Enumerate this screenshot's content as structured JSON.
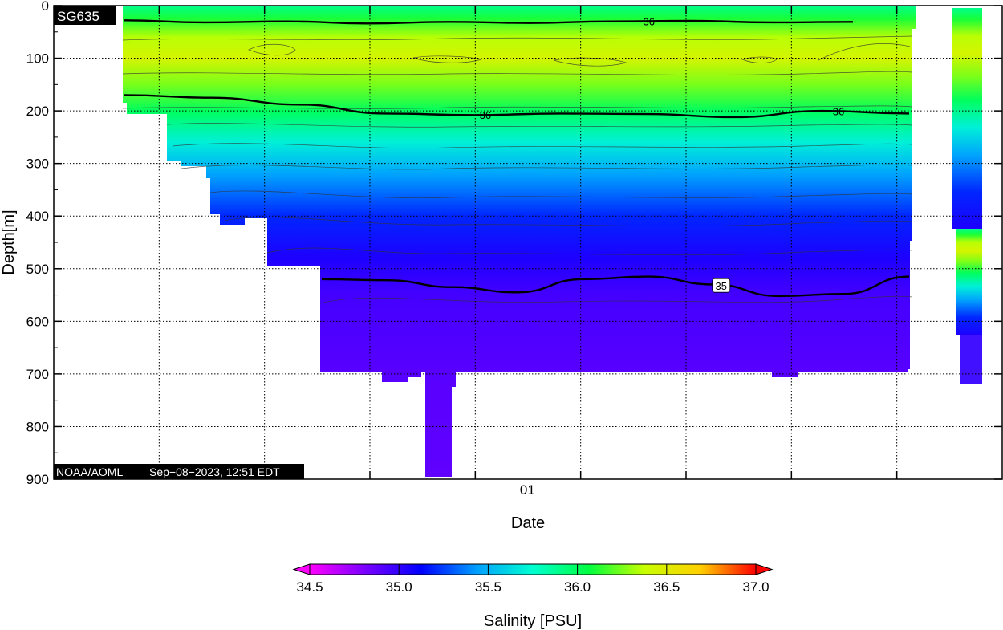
{
  "chart_data": {
    "type": "heatmap",
    "title_badge": "SG635",
    "credit": "NOAA/AOML",
    "timestamp": "Sep−08−2023, 12:51 EDT",
    "xlabel": "Date",
    "ylabel": "Depth[m]",
    "x_tick_labels": [
      "01"
    ],
    "y_ticks": [
      0,
      100,
      200,
      300,
      400,
      500,
      600,
      700,
      800,
      900
    ],
    "ylim": [
      0,
      900
    ],
    "y_inverted": true,
    "grid": true,
    "colorbar": {
      "label": "Salinity [PSU]",
      "min": 34.5,
      "max": 37.0,
      "ticks": [
        "34.5",
        "35.0",
        "35.5",
        "36.0",
        "36.5",
        "37.0"
      ],
      "colors": [
        "#ff00ff",
        "#7a00ff",
        "#0000ff",
        "#00a0ff",
        "#00ffd0",
        "#00ff40",
        "#c8ff00",
        "#ffd000",
        "#ff0000"
      ]
    },
    "profile_vs_depth": {
      "depth_m": [
        0,
        25,
        60,
        100,
        150,
        200,
        260,
        320,
        400,
        480,
        550,
        700,
        900
      ],
      "salinity_psu": [
        35.9,
        36.1,
        36.35,
        36.45,
        36.25,
        36.0,
        35.7,
        35.45,
        35.2,
        35.05,
        34.95,
        34.9,
        34.88
      ]
    },
    "contours": [
      {
        "level": "36",
        "label": "36",
        "depth_m": [
          28,
          32,
          30,
          34,
          31,
          33,
          30,
          29,
          32,
          31
        ]
      },
      {
        "level": "36",
        "label": "36",
        "depth_m": [
          170,
          175,
          188,
          205,
          208,
          205,
          206,
          212,
          200,
          205
        ]
      },
      {
        "level": "35",
        "label": "35",
        "depth_m": [
          520,
          522,
          535,
          545,
          520,
          515,
          530,
          552,
          548,
          515
        ]
      }
    ]
  }
}
